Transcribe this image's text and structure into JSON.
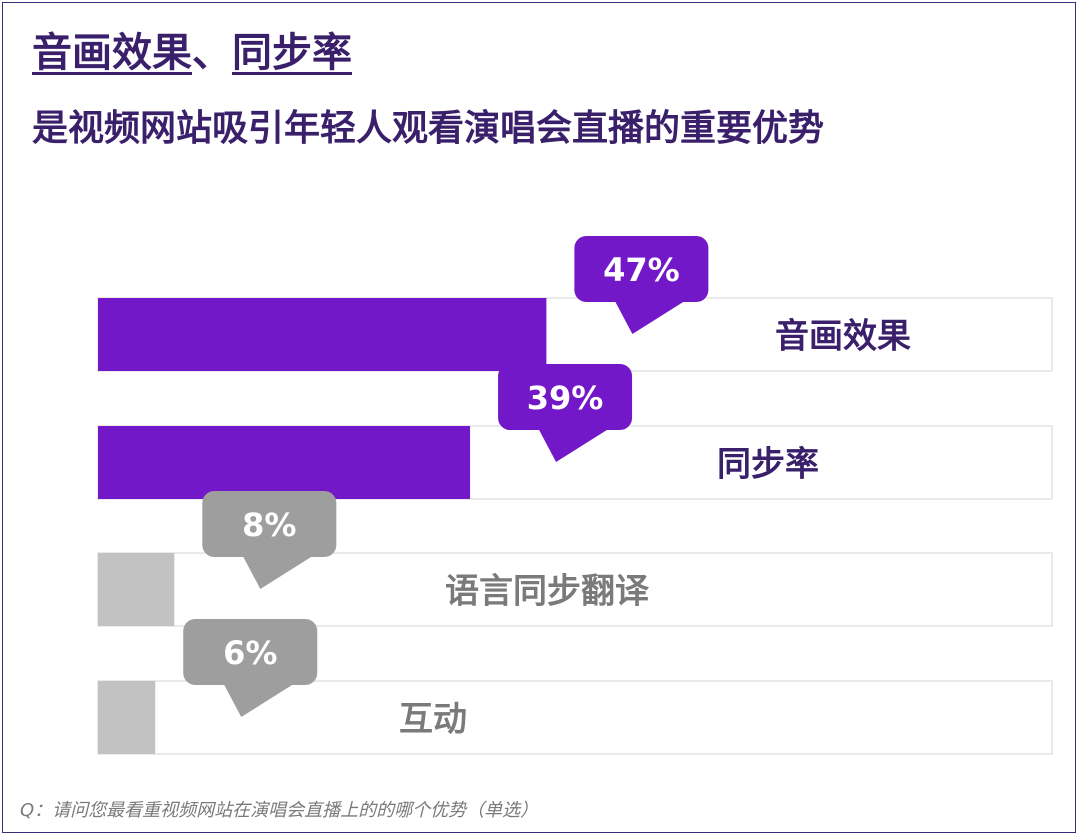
{
  "title": {
    "part1": "音画效果",
    "separator": "、",
    "part2": "同步率",
    "line2": "是视频网站吸引年轻人观看演唱会直播的重要优势"
  },
  "question": "Q：请问您最看重视频网站在演唱会直播上的的哪个优势（单选）",
  "colors": {
    "highlight": "#7318c8",
    "muted_fill": "#c2c2c2",
    "muted_bubble": "#9e9e9e",
    "highlight_label": "#3a1f6b",
    "muted_label": "#7a7a7a",
    "track_border": "#d6d6d6"
  },
  "chart_data": {
    "type": "bar",
    "orientation": "horizontal",
    "xlim": [
      0,
      100
    ],
    "categories": [
      "音画效果",
      "同步率",
      "语言同步翻译",
      "互动"
    ],
    "values": [
      47,
      39,
      8,
      6
    ],
    "value_labels": [
      "47%",
      "39%",
      "8%",
      "6%"
    ],
    "highlighted": [
      true,
      true,
      false,
      false
    ],
    "title": "",
    "xlabel": "",
    "ylabel": "",
    "grid": false,
    "legend": "none"
  }
}
